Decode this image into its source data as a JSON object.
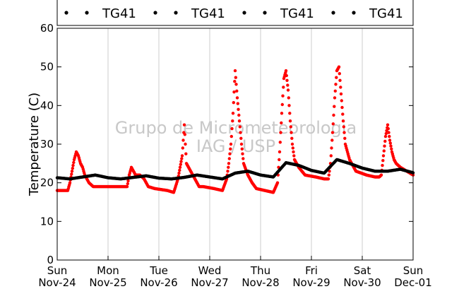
{
  "chart_data": {
    "type": "scatter",
    "title": "",
    "xlabel": "",
    "ylabel": "Temperature (C)",
    "ylim": [
      0,
      60
    ],
    "yticks": [
      0,
      10,
      20,
      30,
      40,
      50,
      60
    ],
    "xlim": [
      "2015-11-24T00:00",
      "2015-12-01T00:00"
    ],
    "xticks": [
      {
        "day": "Sun",
        "date": "Nov-24"
      },
      {
        "day": "Mon",
        "date": "Nov-25"
      },
      {
        "day": "Tue",
        "date": "Nov-26"
      },
      {
        "day": "Wed",
        "date": "Nov-27"
      },
      {
        "day": "Thu",
        "date": "Nov-28"
      },
      {
        "day": "Fri",
        "date": "Nov-29"
      },
      {
        "day": "Sat",
        "date": "Nov-30"
      },
      {
        "day": "Sun",
        "date": "Dec-01"
      }
    ],
    "grid": "vertical",
    "legend": {
      "placement": "top",
      "entries": [
        "TG41",
        "TG41",
        "TG41",
        "TG41"
      ]
    },
    "watermark": {
      "line1": "Grupo de Micrometeorologia",
      "line2": "IAG / USP"
    },
    "series": [
      {
        "color": "#ff0000",
        "x": [
          "2015-11-24T00:00",
          "2015-11-24T03:00",
          "2015-11-24T05:00",
          "2015-11-24T06:00",
          "2015-11-24T07:00",
          "2015-11-24T08:00",
          "2015-11-24T09:00",
          "2015-11-24T10:00",
          "2015-11-24T11:00",
          "2015-11-24T12:00",
          "2015-11-24T13:00",
          "2015-11-24T14:00",
          "2015-11-24T15:00",
          "2015-11-24T16:00",
          "2015-11-24T17:00",
          "2015-11-24T19:00",
          "2015-11-24T22:00",
          "2015-11-25T02:00",
          "2015-11-25T06:00",
          "2015-11-25T09:00",
          "2015-11-25T10:00",
          "2015-11-25T11:00",
          "2015-11-25T12:00",
          "2015-11-25T13:00",
          "2015-11-25T15:00",
          "2015-11-25T17:00",
          "2015-11-25T19:00",
          "2015-11-25T22:00",
          "2015-11-26T04:00",
          "2015-11-26T07:00",
          "2015-11-26T09:00",
          "2015-11-26T10:00",
          "2015-11-26T11:00",
          "2015-11-26T12:00",
          "2015-11-26T13:00",
          "2015-11-26T14:00",
          "2015-11-26T15:00",
          "2015-11-26T16:00",
          "2015-11-26T18:00",
          "2015-11-26T19:00",
          "2015-11-26T21:00",
          "2015-11-27T02:00",
          "2015-11-27T06:00",
          "2015-11-27T08:00",
          "2015-11-27T09:00",
          "2015-11-27T10:00",
          "2015-11-27T11:00",
          "2015-11-27T12:00",
          "2015-11-27T13:00",
          "2015-11-27T14:00",
          "2015-11-27T15:00",
          "2015-11-27T16:00",
          "2015-11-27T18:00",
          "2015-11-27T20:00",
          "2015-11-27T22:00",
          "2015-11-28T02:00",
          "2015-11-28T06:00",
          "2015-11-28T08:00",
          "2015-11-28T09:00",
          "2015-11-28T10:00",
          "2015-11-28T11:00",
          "2015-11-28T12:00",
          "2015-11-28T13:00",
          "2015-11-28T14:00",
          "2015-11-28T15:00",
          "2015-11-28T16:00",
          "2015-11-28T18:00",
          "2015-11-28T21:00",
          "2015-11-29T02:00",
          "2015-11-29T06:00",
          "2015-11-29T08:00",
          "2015-11-29T09:00",
          "2015-11-29T10:00",
          "2015-11-29T11:00",
          "2015-11-29T12:00",
          "2015-11-29T13:00",
          "2015-11-29T14:00",
          "2015-11-29T15:00",
          "2015-11-29T16:00",
          "2015-11-29T18:00",
          "2015-11-29T21:00",
          "2015-11-30T02:00",
          "2015-11-30T06:00",
          "2015-11-30T08:00",
          "2015-11-30T09:00",
          "2015-11-30T10:00",
          "2015-11-30T11:00",
          "2015-11-30T12:00",
          "2015-11-30T13:00",
          "2015-11-30T14:00",
          "2015-11-30T15:00",
          "2015-11-30T16:00",
          "2015-11-30T18:00",
          "2015-11-30T21:00",
          "2015-12-01T00:00"
        ],
        "y": [
          18,
          18,
          18,
          20,
          23,
          26,
          28,
          27,
          25,
          24,
          22,
          21,
          20,
          19.5,
          19,
          19,
          19,
          19,
          19,
          19,
          22,
          24,
          23,
          22,
          22,
          21,
          19,
          18.5,
          18,
          17.5,
          21,
          24,
          27,
          35,
          25,
          24,
          23,
          22,
          20,
          19,
          19,
          18.5,
          18,
          21,
          25,
          30,
          38,
          49,
          42,
          36,
          30,
          25,
          22,
          20,
          18.5,
          18,
          17.5,
          20,
          28,
          38,
          47,
          49,
          44,
          36,
          30,
          26,
          24,
          22,
          21.5,
          21,
          21,
          25,
          33,
          42,
          49,
          50,
          43,
          36,
          30,
          26,
          23,
          22,
          21.5,
          21.5,
          22,
          27,
          32,
          35,
          31,
          28,
          26,
          25,
          24,
          23,
          22
        ]
      },
      {
        "color": "#000000",
        "x": [
          "2015-11-24T00:00",
          "2015-11-24T06:00",
          "2015-11-24T12:00",
          "2015-11-24T18:00",
          "2015-11-25T00:00",
          "2015-11-25T06:00",
          "2015-11-25T12:00",
          "2015-11-25T18:00",
          "2015-11-26T00:00",
          "2015-11-26T06:00",
          "2015-11-26T12:00",
          "2015-11-26T18:00",
          "2015-11-27T00:00",
          "2015-11-27T06:00",
          "2015-11-27T12:00",
          "2015-11-27T18:00",
          "2015-11-28T00:00",
          "2015-11-28T06:00",
          "2015-11-28T12:00",
          "2015-11-28T18:00",
          "2015-11-29T00:00",
          "2015-11-29T06:00",
          "2015-11-29T12:00",
          "2015-11-29T18:00",
          "2015-11-30T00:00",
          "2015-11-30T06:00",
          "2015-11-30T12:00",
          "2015-11-30T18:00",
          "2015-12-01T00:00"
        ],
        "y": [
          21.3,
          21,
          21.5,
          22,
          21.3,
          21,
          21.4,
          21.8,
          21.2,
          21,
          21.4,
          22,
          21.5,
          21,
          22.5,
          23,
          22,
          21.5,
          25.2,
          24.5,
          23.2,
          22.5,
          26,
          25,
          23.8,
          23,
          23,
          23.5,
          22.6
        ]
      }
    ]
  }
}
